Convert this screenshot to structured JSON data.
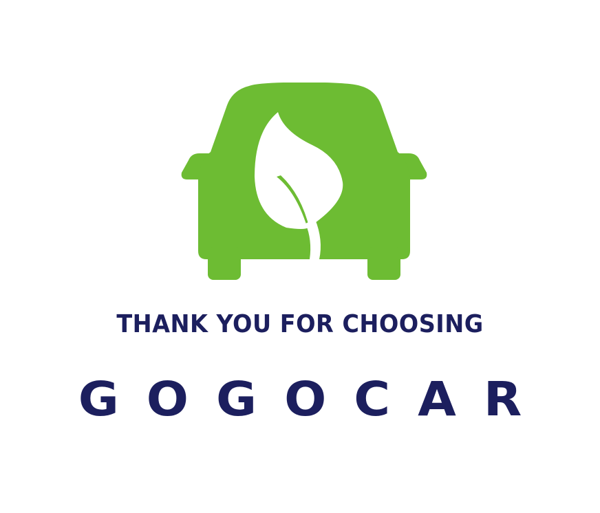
{
  "logo": {
    "icon": "car-leaf-icon",
    "car_color": "#6dbc33",
    "leaf_color": "#ffffff"
  },
  "tagline": "THANK YOU FOR CHOOSING",
  "brand_name": "GOGOCAR",
  "text_color": "#1c1f5e",
  "background_color": "#ffffff"
}
